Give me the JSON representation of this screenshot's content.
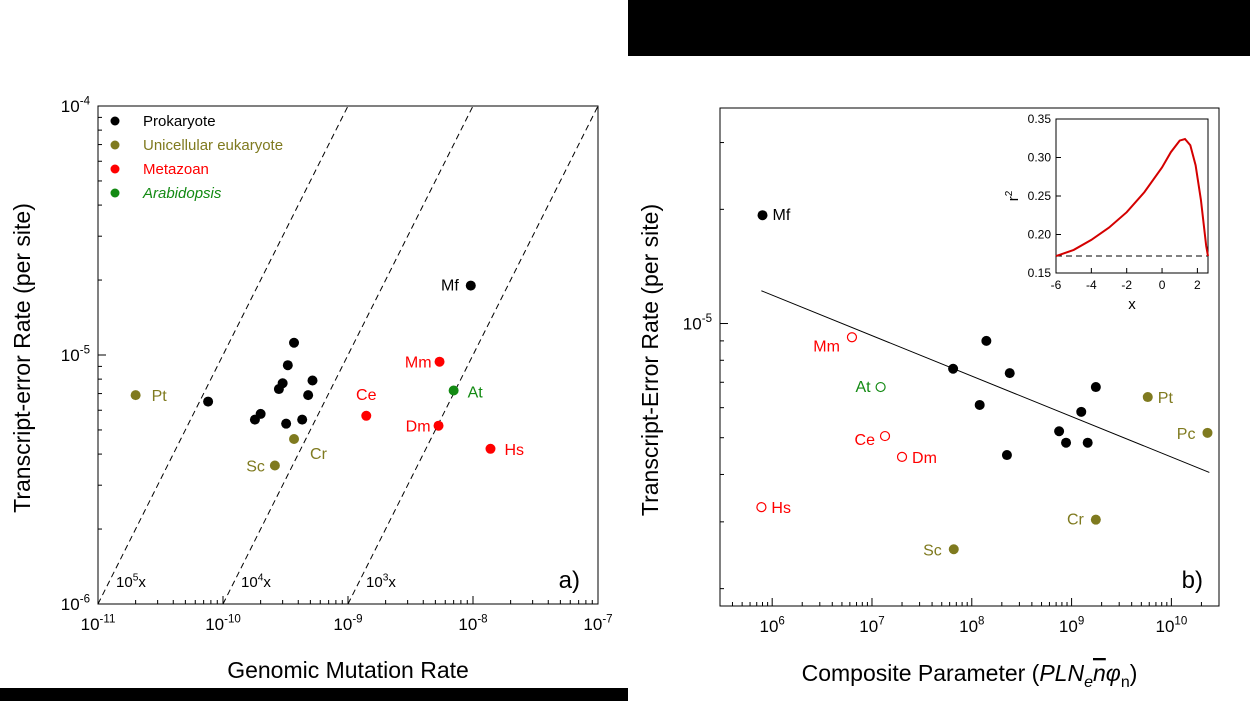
{
  "chart_data": [
    {
      "type": "scatter",
      "panel_label": "a)",
      "xlabel": "Genomic Mutation Rate",
      "ylabel": "Transcript-error Rate (per site)",
      "xscale": "log",
      "yscale": "log",
      "xlim": [
        1e-11,
        1e-07
      ],
      "ylim": [
        1e-06,
        0.0001
      ],
      "x_ticks": [
        {
          "v": 1e-11,
          "base": "10",
          "exp": "-11"
        },
        {
          "v": 1e-10,
          "base": "10",
          "exp": "-10"
        },
        {
          "v": 1e-09,
          "base": "10",
          "exp": "-9"
        },
        {
          "v": 1e-08,
          "base": "10",
          "exp": "-8"
        },
        {
          "v": 1e-07,
          "base": "10",
          "exp": "-7"
        }
      ],
      "y_ticks": [
        {
          "v": 1e-06,
          "base": "10",
          "exp": "-6"
        },
        {
          "v": 1e-05,
          "base": "10",
          "exp": "-5"
        },
        {
          "v": 0.0001,
          "base": "10",
          "exp": "-4"
        }
      ],
      "legend": [
        {
          "label": "Prokaryote",
          "color": "#000000",
          "italic": false
        },
        {
          "label": "Unicellular eukaryote",
          "color": "#7f7a1f",
          "italic": false
        },
        {
          "label": "Metazoan",
          "color": "#ff0000",
          "italic": false
        },
        {
          "label": "Arabidopsis",
          "color": "#138a13",
          "italic": true
        }
      ],
      "ratio_lines": [
        {
          "ratio": 100000,
          "base": "10",
          "exp": "5",
          "suffix": "x"
        },
        {
          "ratio": 10000,
          "base": "10",
          "exp": "4",
          "suffix": "x"
        },
        {
          "ratio": 1000,
          "base": "10",
          "exp": "3",
          "suffix": "x"
        }
      ],
      "series": [
        {
          "name": "Prokaryote",
          "color": "#000000",
          "points": [
            {
              "x": 7.6e-11,
              "y": 6.5e-06
            },
            {
              "x": 1.8e-10,
              "y": 5.5e-06
            },
            {
              "x": 2e-10,
              "y": 5.8e-06
            },
            {
              "x": 2.8e-10,
              "y": 7.3e-06
            },
            {
              "x": 3e-10,
              "y": 7.7e-06
            },
            {
              "x": 3.2e-10,
              "y": 5.3e-06
            },
            {
              "x": 3.3e-10,
              "y": 9.1e-06
            },
            {
              "x": 3.7e-10,
              "y": 1.12e-05
            },
            {
              "x": 4.3e-10,
              "y": 5.5e-06
            },
            {
              "x": 4.8e-10,
              "y": 6.9e-06
            },
            {
              "x": 5.2e-10,
              "y": 7.9e-06
            },
            {
              "x": 9.6e-09,
              "y": 1.9e-05,
              "label": "Mf"
            }
          ]
        },
        {
          "name": "Unicellular eukaryote",
          "color": "#7f7a1f",
          "points": [
            {
              "x": 2e-11,
              "y": 6.9e-06,
              "label": "Pt"
            },
            {
              "x": 2.6e-10,
              "y": 3.6e-06,
              "label": "Sc"
            },
            {
              "x": 3.7e-10,
              "y": 4.6e-06,
              "label": "Cr"
            }
          ]
        },
        {
          "name": "Metazoan",
          "color": "#ff0000",
          "points": [
            {
              "x": 1.4e-09,
              "y": 5.7e-06,
              "label": "Ce"
            },
            {
              "x": 5.4e-09,
              "y": 9.4e-06,
              "label": "Mm"
            },
            {
              "x": 5.3e-09,
              "y": 5.2e-06,
              "label": "Dm"
            },
            {
              "x": 1.38e-08,
              "y": 4.2e-06,
              "label": "Hs"
            }
          ]
        },
        {
          "name": "Arabidopsis",
          "color": "#138a13",
          "points": [
            {
              "x": 7e-09,
              "y": 7.2e-06,
              "label": "At"
            }
          ]
        }
      ]
    },
    {
      "type": "scatter",
      "panel_label": "b)",
      "xlabel": "Composite Parameter (PLNenφn)",
      "xlabel_parts": {
        "prefix": "Composite Parameter (",
        "PL": "PLN",
        "e": "e",
        "n": "n",
        "phi": "φ",
        "nsub": "n",
        "suffix": ")"
      },
      "ylabel": "Transcript-Error Rate (per site)",
      "xscale": "log",
      "yscale": "log",
      "xlim": [
        300000.0,
        30000000000.0
      ],
      "ylim": [
        1.8e-06,
        3.7e-05
      ],
      "x_ticks": [
        {
          "v": 1000000.0,
          "base": "10",
          "exp": "6"
        },
        {
          "v": 10000000.0,
          "base": "10",
          "exp": "7"
        },
        {
          "v": 100000000.0,
          "base": "10",
          "exp": "8"
        },
        {
          "v": 1000000000.0,
          "base": "10",
          "exp": "9"
        },
        {
          "v": 10000000000.0,
          "base": "10",
          "exp": "10"
        }
      ],
      "y_ticks": [
        {
          "v": 1e-05,
          "base": "10",
          "exp": "-5"
        }
      ],
      "fit_line": [
        {
          "x": 780000.0,
          "y": 1.22e-05
        },
        {
          "x": 24000000000.0,
          "y": 4.05e-06
        }
      ],
      "series": [
        {
          "name": "Prokaryote",
          "color": "#000000",
          "filled": true,
          "points": [
            {
              "x": 800000.0,
              "y": 1.93e-05,
              "label": "Mf"
            },
            {
              "x": 65000000.0,
              "y": 7.6e-06
            },
            {
              "x": 120000000.0,
              "y": 6.1e-06
            },
            {
              "x": 140000000.0,
              "y": 9e-06
            },
            {
              "x": 225000000.0,
              "y": 4.5e-06
            },
            {
              "x": 240000000.0,
              "y": 7.4e-06
            },
            {
              "x": 750000000.0,
              "y": 5.2e-06
            },
            {
              "x": 880000000.0,
              "y": 4.85e-06
            },
            {
              "x": 1250000000.0,
              "y": 5.85e-06
            },
            {
              "x": 1450000000.0,
              "y": 4.85e-06
            },
            {
              "x": 1750000000.0,
              "y": 6.8e-06
            }
          ]
        },
        {
          "name": "Unicellular eukaryote",
          "color": "#7f7a1f",
          "filled": true,
          "points": [
            {
              "x": 5800000000.0,
              "y": 6.4e-06,
              "label": "Pt"
            },
            {
              "x": 23000000000.0,
              "y": 5.15e-06,
              "label": "Pc"
            },
            {
              "x": 1750000000.0,
              "y": 3.04e-06,
              "label": "Cr"
            },
            {
              "x": 66000000.0,
              "y": 2.54e-06,
              "label": "Sc"
            }
          ]
        },
        {
          "name": "Metazoan",
          "color": "#ff0000",
          "filled": false,
          "points": [
            {
              "x": 6300000.0,
              "y": 9.2e-06,
              "label": "Mm"
            },
            {
              "x": 13500000.0,
              "y": 5.05e-06,
              "label": "Ce"
            },
            {
              "x": 20000000.0,
              "y": 4.45e-06,
              "label": "Dm"
            },
            {
              "x": 780000.0,
              "y": 3.28e-06,
              "label": "Hs"
            }
          ]
        },
        {
          "name": "Arabidopsis",
          "color": "#138a13",
          "filled": false,
          "points": [
            {
              "x": 12200000.0,
              "y": 6.8e-06,
              "label": "At"
            }
          ]
        }
      ],
      "inset": {
        "type": "line",
        "xlabel": "x",
        "ylabel": "r",
        "ylabel_sup": "2",
        "xlim": [
          -6,
          2.6
        ],
        "ylim": [
          0.15,
          0.35
        ],
        "x_ticks": [
          "-6",
          "-4",
          "-2",
          "0",
          "2"
        ],
        "y_ticks": [
          "0.15",
          "0.20",
          "0.25",
          "0.30",
          "0.35"
        ],
        "baseline": 0.172,
        "curve_color": "#d40000",
        "curve": [
          [
            -6,
            0.172
          ],
          [
            -5,
            0.18
          ],
          [
            -4,
            0.193
          ],
          [
            -3,
            0.209
          ],
          [
            -2,
            0.229
          ],
          [
            -1,
            0.255
          ],
          [
            0,
            0.287
          ],
          [
            0.5,
            0.307
          ],
          [
            1.0,
            0.322
          ],
          [
            1.3,
            0.324
          ],
          [
            1.6,
            0.316
          ],
          [
            1.9,
            0.29
          ],
          [
            2.2,
            0.245
          ],
          [
            2.5,
            0.185
          ],
          [
            2.6,
            0.172
          ]
        ]
      }
    }
  ]
}
